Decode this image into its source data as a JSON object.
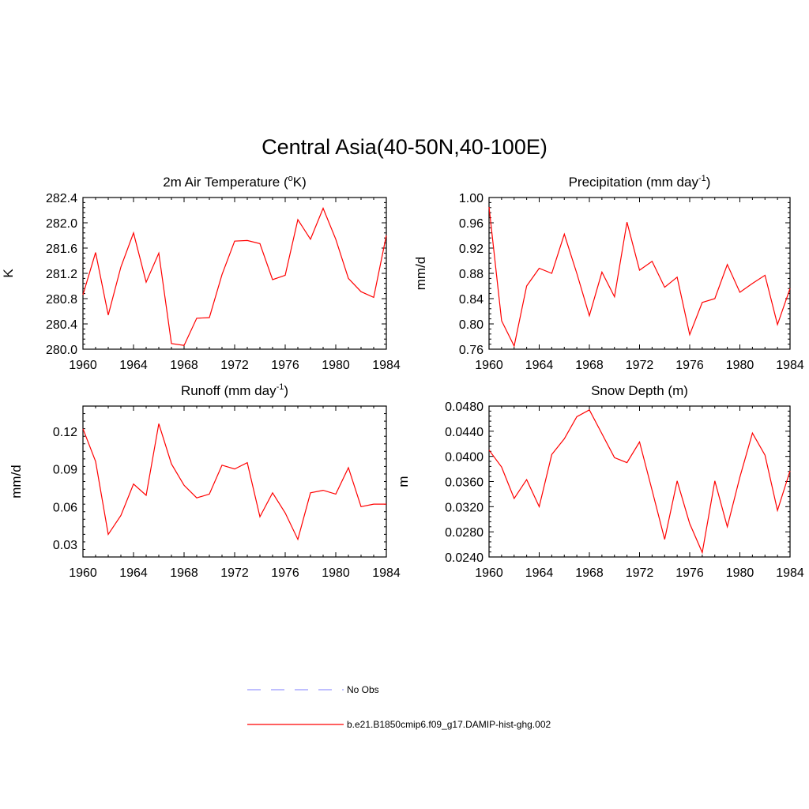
{
  "figure": {
    "title": "Central Asia(40-50N,40-100E)"
  },
  "colors": {
    "model_line": "#ff0000",
    "obs_line": "#9999ff",
    "axis": "#000000",
    "background": "#ffffff"
  },
  "legend": {
    "items": [
      {
        "label": "No Obs",
        "style": "dashed",
        "color": "#9999ff"
      },
      {
        "label": "b.e21.B1850cmip6.f09_g17.DAMIP-hist-ghg.002",
        "style": "solid",
        "color": "#ff0000"
      }
    ]
  },
  "chart_data": [
    {
      "type": "line",
      "panel": "top-left",
      "title": "2m Air Temperature (°K)",
      "title_main": "2m Air Temperature (",
      "title_sup": "o",
      "title_tail": "K)",
      "xlabel": "",
      "ylabel": "K",
      "xlim": [
        1960,
        1984
      ],
      "ylim": [
        280.0,
        282.4
      ],
      "xticks": [
        "1960",
        "1964",
        "1968",
        "1972",
        "1976",
        "1980",
        "1984"
      ],
      "yticks": [
        "280.0",
        "280.4",
        "280.8",
        "281.2",
        "281.6",
        "282.0",
        "282.4"
      ],
      "x": [
        1960,
        1961,
        1962,
        1963,
        1964,
        1965,
        1966,
        1967,
        1968,
        1969,
        1970,
        1971,
        1972,
        1973,
        1974,
        1975,
        1976,
        1977,
        1978,
        1979,
        1980,
        1981,
        1982,
        1983,
        1984
      ],
      "series": [
        {
          "values": [
            280.86,
            281.53,
            280.54,
            281.3,
            281.84,
            281.06,
            281.52,
            280.09,
            280.06,
            280.49,
            280.5,
            281.18,
            281.71,
            281.72,
            281.67,
            281.1,
            281.17,
            282.05,
            281.74,
            282.23,
            281.74,
            281.12,
            280.91,
            280.82,
            281.8
          ]
        }
      ]
    },
    {
      "type": "line",
      "panel": "top-right",
      "title": "Precipitation (mm day-1)",
      "title_main": "Precipitation (mm day",
      "title_sup": "-1",
      "title_tail": ")",
      "xlabel": "",
      "ylabel": "mm/d",
      "xlim": [
        1960,
        1984
      ],
      "ylim": [
        0.76,
        1.0
      ],
      "xticks": [
        "1960",
        "1964",
        "1968",
        "1972",
        "1976",
        "1980",
        "1984"
      ],
      "yticks": [
        "0.76",
        "0.80",
        "0.84",
        "0.88",
        "0.92",
        "0.96",
        "1.00"
      ],
      "x": [
        1960,
        1961,
        1962,
        1963,
        1964,
        1965,
        1966,
        1967,
        1968,
        1969,
        1970,
        1971,
        1972,
        1973,
        1974,
        1975,
        1976,
        1977,
        1978,
        1979,
        1980,
        1981,
        1982,
        1983,
        1984
      ],
      "series": [
        {
          "values": [
            0.985,
            0.805,
            0.765,
            0.86,
            0.888,
            0.88,
            0.942,
            0.88,
            0.813,
            0.882,
            0.843,
            0.961,
            0.885,
            0.899,
            0.858,
            0.874,
            0.783,
            0.834,
            0.84,
            0.894,
            0.85,
            0.864,
            0.877,
            0.799,
            0.856
          ]
        }
      ]
    },
    {
      "type": "line",
      "panel": "bottom-left",
      "title": "Runoff (mm day-1)",
      "title_main": "Runoff (mm day",
      "title_sup": "-1",
      "title_tail": ")",
      "xlabel": "",
      "ylabel": "mm/d",
      "xlim": [
        1960,
        1984
      ],
      "ylim": [
        0.02,
        0.14
      ],
      "xticks": [
        "1960",
        "1964",
        "1968",
        "1972",
        "1976",
        "1980",
        "1984"
      ],
      "yticks": [
        "0.03",
        "0.06",
        "0.09",
        "0.12"
      ],
      "ytick_values": [
        0.03,
        0.06,
        0.09,
        0.12
      ],
      "x": [
        1960,
        1961,
        1962,
        1963,
        1964,
        1965,
        1966,
        1967,
        1968,
        1969,
        1970,
        1971,
        1972,
        1973,
        1974,
        1975,
        1976,
        1977,
        1978,
        1979,
        1980,
        1981,
        1982,
        1983,
        1984
      ],
      "series": [
        {
          "values": [
            0.122,
            0.096,
            0.038,
            0.053,
            0.078,
            0.069,
            0.126,
            0.094,
            0.077,
            0.067,
            0.07,
            0.093,
            0.09,
            0.095,
            0.052,
            0.071,
            0.055,
            0.034,
            0.071,
            0.073,
            0.07,
            0.091,
            0.06,
            0.062,
            0.062
          ]
        }
      ]
    },
    {
      "type": "line",
      "panel": "bottom-right",
      "title": "Snow Depth (m)",
      "title_main": "Snow Depth (m)",
      "title_sup": "",
      "title_tail": "",
      "xlabel": "",
      "ylabel": "m",
      "xlim": [
        1960,
        1984
      ],
      "ylim": [
        0.024,
        0.048
      ],
      "xticks": [
        "1960",
        "1964",
        "1968",
        "1972",
        "1976",
        "1980",
        "1984"
      ],
      "yticks": [
        "0.0240",
        "0.0280",
        "0.0320",
        "0.0360",
        "0.0400",
        "0.0440",
        "0.0480"
      ],
      "x": [
        1960,
        1961,
        1962,
        1963,
        1964,
        1965,
        1966,
        1967,
        1968,
        1969,
        1970,
        1971,
        1972,
        1973,
        1974,
        1975,
        1976,
        1977,
        1978,
        1979,
        1980,
        1981,
        1982,
        1983,
        1984
      ],
      "series": [
        {
          "values": [
            0.041,
            0.0383,
            0.0333,
            0.0363,
            0.032,
            0.0403,
            0.0428,
            0.0463,
            0.0474,
            0.0436,
            0.0398,
            0.039,
            0.0423,
            0.0346,
            0.0268,
            0.0361,
            0.0293,
            0.0247,
            0.0361,
            0.0288,
            0.0367,
            0.0437,
            0.0402,
            0.0314,
            0.0377
          ]
        }
      ]
    }
  ]
}
